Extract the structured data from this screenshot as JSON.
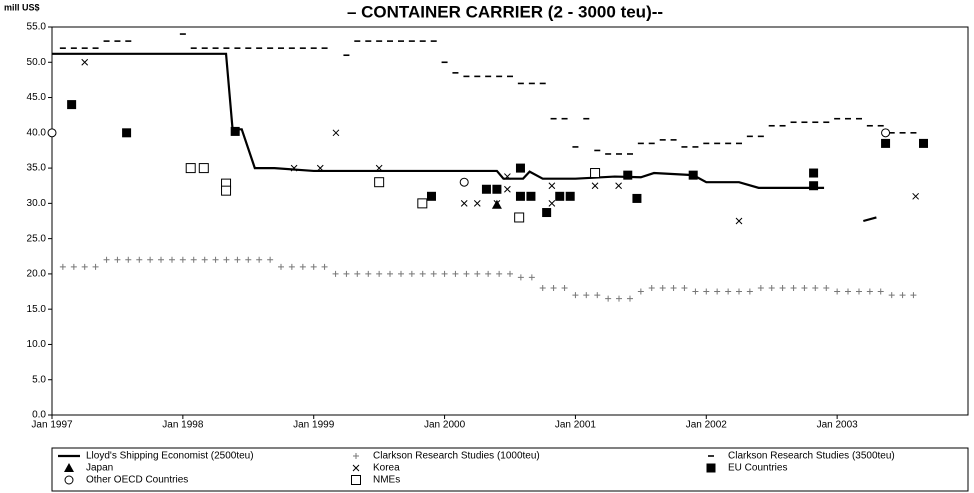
{
  "chart_data": {
    "type": "line",
    "title": "– CONTAINER CARRIER (2 - 3000 teu)--",
    "y_axis_label": "mill US$",
    "xlim": [
      1997,
      2004
    ],
    "xticks": [
      {
        "value": 1997,
        "label": "Jan 1997"
      },
      {
        "value": 1998,
        "label": "Jan 1998"
      },
      {
        "value": 1999,
        "label": "Jan 1999"
      },
      {
        "value": 2000,
        "label": "Jan 2000"
      },
      {
        "value": 2001,
        "label": "Jan 2001"
      },
      {
        "value": 2002,
        "label": "Jan 2002"
      },
      {
        "value": 2003,
        "label": "Jan 2003"
      }
    ],
    "ylim": [
      0,
      55
    ],
    "yticks": [
      {
        "value": 0,
        "label": "0.0"
      },
      {
        "value": 5,
        "label": "5.0"
      },
      {
        "value": 10,
        "label": "10.0"
      },
      {
        "value": 15,
        "label": "15.0"
      },
      {
        "value": 20,
        "label": "20.0"
      },
      {
        "value": 25,
        "label": "25.0"
      },
      {
        "value": 30,
        "label": "30.0"
      },
      {
        "value": 35,
        "label": "35.0"
      },
      {
        "value": 40,
        "label": "40.0"
      },
      {
        "value": 45,
        "label": "45.0"
      },
      {
        "value": 50,
        "label": "50.0"
      },
      {
        "value": 55,
        "label": "55.0"
      }
    ],
    "grid": false,
    "legend": "bottom",
    "series": [
      {
        "name": "Lloyd's Shipping Economist (2500teu)",
        "color": "#000000",
        "style": "line",
        "x": [
          1997.0,
          1998.33,
          1998.38,
          1998.45,
          1998.55,
          1998.7,
          1999.0,
          1999.5,
          2000.0,
          2000.4,
          2000.45,
          2000.6,
          2000.65,
          2000.75,
          2000.85,
          2001.0,
          2001.3,
          2001.5,
          2001.6,
          2001.9,
          2002.0,
          2002.25,
          2002.4,
          2002.9,
          2003.0,
          2003.2,
          2003.3
        ],
        "values": [
          51.2,
          51.2,
          40.5,
          40.5,
          35.0,
          35.0,
          34.6,
          34.6,
          34.6,
          34.6,
          33.5,
          33.5,
          34.5,
          33.5,
          33.5,
          33.5,
          33.8,
          33.7,
          34.3,
          34.0,
          33.0,
          33.0,
          32.2,
          32.2,
          null,
          27.5,
          28.0
        ]
      },
      {
        "name": "Clarkson Research Studies (1000teu)",
        "color": "#777777",
        "style": "plus",
        "x": [
          1997.083,
          1997.167,
          1997.25,
          1997.333,
          1997.417,
          1997.5,
          1997.583,
          1997.667,
          1997.75,
          1997.833,
          1997.917,
          1998,
          1998.083,
          1998.167,
          1998.25,
          1998.333,
          1998.417,
          1998.5,
          1998.583,
          1998.667,
          1998.75,
          1998.833,
          1998.917,
          1999,
          1999.083,
          1999.167,
          1999.25,
          1999.333,
          1999.417,
          1999.5,
          1999.583,
          1999.667,
          1999.75,
          1999.833,
          1999.917,
          2000,
          2000.083,
          2000.167,
          2000.25,
          2000.333,
          2000.417,
          2000.5,
          2000.583,
          2000.667,
          2000.75,
          2000.833,
          2000.917,
          2001,
          2001.083,
          2001.167,
          2001.25,
          2001.333,
          2001.417,
          2001.5,
          2001.583,
          2001.667,
          2001.75,
          2001.833,
          2001.917,
          2002,
          2002.083,
          2002.167,
          2002.25,
          2002.333,
          2002.417,
          2002.5,
          2002.583,
          2002.667,
          2002.75,
          2002.833,
          2002.917,
          2003,
          2003.083,
          2003.167,
          2003.25,
          2003.333,
          2003.417,
          2003.5,
          2003.583
        ],
        "values": [
          21,
          21,
          21,
          21,
          22,
          22,
          22,
          22,
          22,
          22,
          22,
          22,
          22,
          22,
          22,
          22,
          22,
          22,
          22,
          22,
          21,
          21,
          21,
          21,
          21,
          20,
          20,
          20,
          20,
          20,
          20,
          20,
          20,
          20,
          20,
          20,
          20,
          20,
          20,
          20,
          20,
          20,
          19.5,
          19.5,
          18,
          18,
          18,
          17,
          17,
          17,
          16.5,
          16.5,
          16.5,
          17.5,
          18,
          18,
          18,
          18,
          17.5,
          17.5,
          17.5,
          17.5,
          17.5,
          17.5,
          18,
          18,
          18,
          18,
          18,
          18,
          18,
          17.5,
          17.5,
          17.5,
          17.5,
          17.5,
          17,
          17,
          17
        ]
      },
      {
        "name": "Clarkson Research Studies (3500teu)",
        "color": "#000000",
        "style": "dash",
        "x": [
          1997.083,
          1997.167,
          1997.25,
          1997.333,
          1997.417,
          1997.5,
          1997.583,
          1998,
          1998.083,
          1998.167,
          1998.25,
          1998.333,
          1998.417,
          1998.5,
          1998.583,
          1998.667,
          1998.75,
          1998.833,
          1998.917,
          1999,
          1999.083,
          1999.25,
          1999.333,
          1999.417,
          1999.5,
          1999.583,
          1999.667,
          1999.75,
          1999.833,
          1999.917,
          2000,
          2000.083,
          2000.167,
          2000.25,
          2000.333,
          2000.417,
          2000.5,
          2000.583,
          2000.667,
          2000.75,
          2000.833,
          2000.917,
          2001,
          2001.083,
          2001.167,
          2001.25,
          2001.333,
          2001.417,
          2001.5,
          2001.583,
          2001.667,
          2001.75,
          2001.833,
          2001.917,
          2002,
          2002.083,
          2002.167,
          2002.25,
          2002.333,
          2002.417,
          2002.5,
          2002.583,
          2002.667,
          2002.75,
          2002.833,
          2002.917,
          2003,
          2003.083,
          2003.167,
          2003.25,
          2003.333,
          2003.417,
          2003.5,
          2003.583
        ],
        "values": [
          52,
          52,
          52,
          52,
          53,
          53,
          53,
          54,
          52,
          52,
          52,
          52,
          52,
          52,
          52,
          52,
          52,
          52,
          52,
          52,
          52,
          51,
          53,
          53,
          53,
          53,
          53,
          53,
          53,
          53,
          50,
          48.5,
          48,
          48,
          48,
          48,
          48,
          47,
          47,
          47,
          42,
          42,
          38,
          42,
          37.5,
          37,
          37,
          37,
          38.5,
          38.5,
          39,
          39,
          38,
          38,
          38.5,
          38.5,
          38.5,
          38.5,
          39.5,
          39.5,
          41,
          41,
          41.5,
          41.5,
          41.5,
          41.5,
          42,
          42,
          42,
          41,
          41,
          40,
          40,
          40
        ]
      },
      {
        "name": "Japan",
        "color": "#000000",
        "style": "triangle",
        "x": [
          2000.4
        ],
        "values": [
          29.8
        ]
      },
      {
        "name": "Korea",
        "color": "#000000",
        "style": "cross",
        "x": [
          1997.25,
          1998.85,
          1999.05,
          1999.17,
          1999.5,
          2000.15,
          2000.25,
          2000.4,
          2000.48,
          2000.48,
          2000.82,
          2000.82,
          2001.15,
          2001.33,
          2002.25,
          2003.6
        ],
        "values": [
          50,
          35,
          35,
          40,
          35,
          30,
          30,
          30,
          32,
          33.8,
          32.5,
          30,
          32.5,
          32.5,
          27.5,
          31
        ]
      },
      {
        "name": "EU Countries",
        "color": "#000000",
        "style": "square",
        "x": [
          1997.15,
          1997.57,
          1998.4,
          1999.9,
          2000.32,
          2000.4,
          2000.58,
          2000.58,
          2000.66,
          2000.78,
          2000.88,
          2000.96,
          2001.4,
          2001.47,
          2001.9,
          2002.82,
          2002.82,
          2003.37,
          2003.66
        ],
        "values": [
          44,
          40,
          40.2,
          31,
          32,
          32,
          35,
          31,
          31,
          28.7,
          31,
          31,
          34,
          30.7,
          34,
          34.3,
          32.5,
          38.5,
          38.5
        ]
      },
      {
        "name": "Other OECD Countries",
        "color": "#000000",
        "style": "circle",
        "x": [
          1997.0,
          2000.15,
          2003.37
        ],
        "values": [
          40,
          33,
          40
        ]
      },
      {
        "name": "NMEs",
        "color": "#000000",
        "style": "open-square",
        "x": [
          1998.06,
          1998.16,
          1998.33,
          1998.33,
          1999.5,
          1999.83,
          2000.57,
          2001.15
        ],
        "values": [
          35,
          35,
          32.8,
          31.8,
          33,
          30,
          28,
          34.3
        ]
      }
    ]
  }
}
